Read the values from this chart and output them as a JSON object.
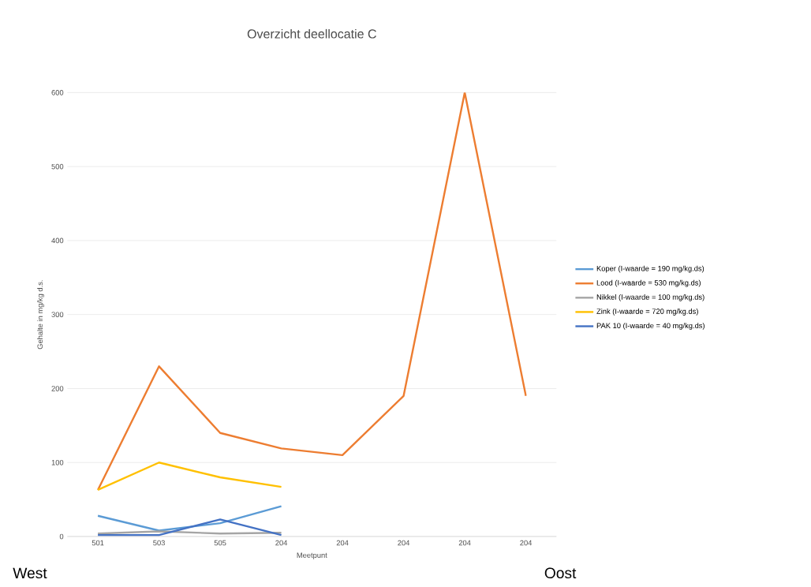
{
  "chart_data": {
    "type": "line",
    "title": "Overzicht deellocatie C",
    "xlabel": "Meetpunt",
    "ylabel": "Gehalte in mg/kg d.s.",
    "categories": [
      "501",
      "503",
      "505",
      "204",
      "204",
      "204",
      "204",
      "204"
    ],
    "series": [
      {
        "name": "Koper (I-waarde = 190 mg/kg.ds)",
        "color": "#5b9bd5",
        "values": [
          28,
          8,
          18,
          41,
          null,
          null,
          null,
          null
        ]
      },
      {
        "name": "Lood (I-waarde = 530 mg/kg.ds)",
        "color": "#ed7d31",
        "values": [
          63,
          230,
          140,
          119,
          110,
          190,
          600,
          190
        ]
      },
      {
        "name": "Nikkel (I-waarde = 100 mg/kg.ds)",
        "color": "#a5a5a5",
        "values": [
          4,
          7,
          4,
          5,
          null,
          null,
          null,
          null
        ]
      },
      {
        "name": "Zink (I-waarde = 720 mg/kg.ds)",
        "color": "#ffc000",
        "values": [
          63,
          100,
          80,
          67,
          null,
          null,
          null,
          null
        ]
      },
      {
        "name": "PAK 10 (I-waarde = 40 mg/kg.ds)",
        "color": "#4472c4",
        "values": [
          2,
          2,
          23,
          2,
          null,
          null,
          null,
          null
        ]
      }
    ],
    "ylim": [
      0,
      600
    ],
    "yticks": [
      0,
      100,
      200,
      300,
      400,
      500,
      600
    ],
    "grid": "y",
    "legend": "right",
    "marker": "none",
    "annotations": [
      "West",
      "Oost"
    ]
  }
}
